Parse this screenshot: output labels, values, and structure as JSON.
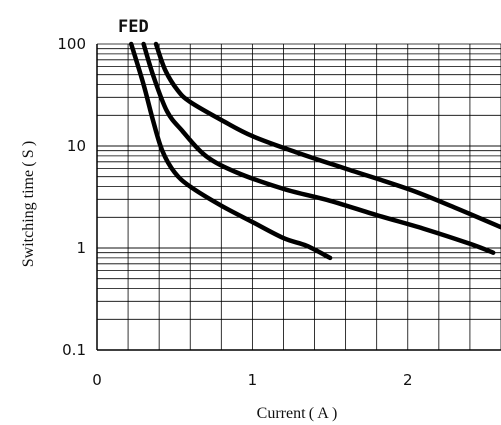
{
  "chart_data": {
    "type": "line",
    "title": "FED",
    "xlabel": "Current ( A )",
    "ylabel": "Switching time ( S )",
    "xscale": "linear",
    "yscale": "log",
    "xlim": [
      0,
      2.6
    ],
    "ylim": [
      0.1,
      100
    ],
    "x_ticks": [
      "0",
      "1",
      "2"
    ],
    "y_ticks": [
      "0.1",
      "1",
      "10",
      "100"
    ],
    "grid": true,
    "legend": "none",
    "line_color": "#000000",
    "series": [
      {
        "points": [
          [
            0.22,
            100
          ],
          [
            0.3,
            40
          ],
          [
            0.36,
            18
          ],
          [
            0.42,
            9
          ],
          [
            0.5,
            5.5
          ],
          [
            0.6,
            4.0
          ],
          [
            0.8,
            2.6
          ],
          [
            1.0,
            1.8
          ],
          [
            1.2,
            1.25
          ],
          [
            1.35,
            1.05
          ],
          [
            1.5,
            0.8
          ]
        ]
      },
      {
        "points": [
          [
            0.3,
            100
          ],
          [
            0.36,
            50
          ],
          [
            0.45,
            22
          ],
          [
            0.55,
            14
          ],
          [
            0.7,
            8
          ],
          [
            0.9,
            5.5
          ],
          [
            1.2,
            3.8
          ],
          [
            1.5,
            2.9
          ],
          [
            1.8,
            2.1
          ],
          [
            2.1,
            1.55
          ],
          [
            2.4,
            1.1
          ],
          [
            2.55,
            0.9
          ]
        ]
      },
      {
        "points": [
          [
            0.38,
            100
          ],
          [
            0.44,
            55
          ],
          [
            0.52,
            35
          ],
          [
            0.6,
            27
          ],
          [
            0.8,
            18
          ],
          [
            1.0,
            12.5
          ],
          [
            1.3,
            8.5
          ],
          [
            1.6,
            6.0
          ],
          [
            2.0,
            3.8
          ],
          [
            2.3,
            2.5
          ],
          [
            2.6,
            1.6
          ]
        ]
      }
    ]
  }
}
